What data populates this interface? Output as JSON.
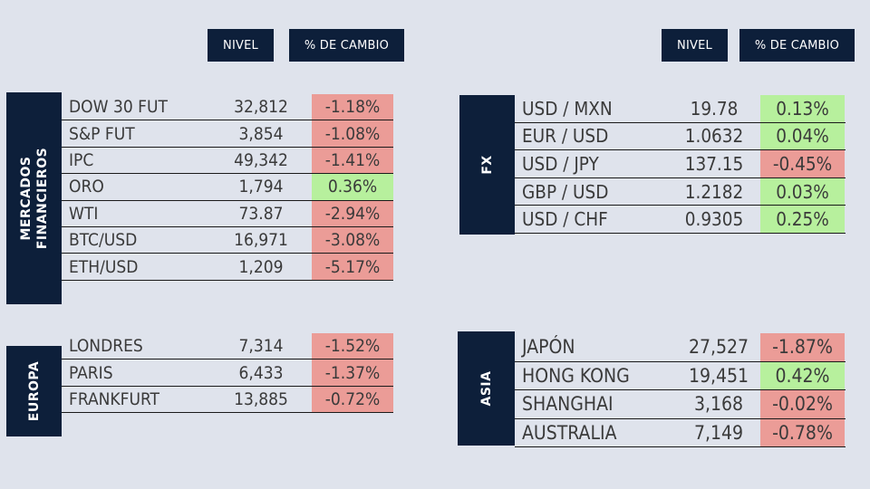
{
  "headers": {
    "left": {
      "nivel": "NIVEL",
      "cambio": "% DE CAMBIO"
    },
    "right": {
      "nivel": "NIVEL",
      "cambio": "% DE CAMBIO"
    }
  },
  "colors": {
    "navy": "#0d1f3a",
    "negative": "#eb9c97",
    "positive": "#b7f09d",
    "background": "#dfe3ec"
  },
  "sections": {
    "mercados": {
      "label": "MERCADOS\nFINANCIEROS",
      "rows": [
        {
          "name": "DOW 30 FUT",
          "nivel": "32,812",
          "cambio": "-1.18%",
          "dir": "neg"
        },
        {
          "name": "S&P FUT",
          "nivel": "3,854",
          "cambio": "-1.08%",
          "dir": "neg"
        },
        {
          "name": "IPC",
          "nivel": "49,342",
          "cambio": "-1.41%",
          "dir": "neg"
        },
        {
          "name": "ORO",
          "nivel": "1,794",
          "cambio": "0.36%",
          "dir": "pos"
        },
        {
          "name": "WTI",
          "nivel": "73.87",
          "cambio": "-2.94%",
          "dir": "neg"
        },
        {
          "name": "BTC/USD",
          "nivel": "16,971",
          "cambio": "-3.08%",
          "dir": "neg"
        },
        {
          "name": "ETH/USD",
          "nivel": "1,209",
          "cambio": "-5.17%",
          "dir": "neg"
        }
      ]
    },
    "fx": {
      "label": "FX",
      "rows": [
        {
          "name": "USD / MXN",
          "nivel": "19.78",
          "cambio": "0.13%",
          "dir": "pos"
        },
        {
          "name": "EUR / USD",
          "nivel": "1.0632",
          "cambio": "0.04%",
          "dir": "pos"
        },
        {
          "name": "USD / JPY",
          "nivel": "137.15",
          "cambio": "-0.45%",
          "dir": "neg"
        },
        {
          "name": "GBP / USD",
          "nivel": "1.2182",
          "cambio": "0.03%",
          "dir": "pos"
        },
        {
          "name": "USD / CHF",
          "nivel": "0.9305",
          "cambio": "0.25%",
          "dir": "pos"
        }
      ]
    },
    "europa": {
      "label": "EUROPA",
      "rows": [
        {
          "name": "LONDRES",
          "nivel": "7,314",
          "cambio": "-1.52%",
          "dir": "neg"
        },
        {
          "name": "PARIS",
          "nivel": "6,433",
          "cambio": "-1.37%",
          "dir": "neg"
        },
        {
          "name": "FRANKFURT",
          "nivel": "13,885",
          "cambio": "-0.72%",
          "dir": "neg"
        }
      ]
    },
    "asia": {
      "label": "ASIA",
      "rows": [
        {
          "name": "JAPÓN",
          "nivel": "27,527",
          "cambio": "-1.87%",
          "dir": "neg"
        },
        {
          "name": "HONG KONG",
          "nivel": "19,451",
          "cambio": "0.42%",
          "dir": "pos"
        },
        {
          "name": "SHANGHAI",
          "nivel": "3,168",
          "cambio": "-0.02%",
          "dir": "neg"
        },
        {
          "name": "AUSTRALIA",
          "nivel": "7,149",
          "cambio": "-0.78%",
          "dir": "neg"
        }
      ]
    }
  }
}
